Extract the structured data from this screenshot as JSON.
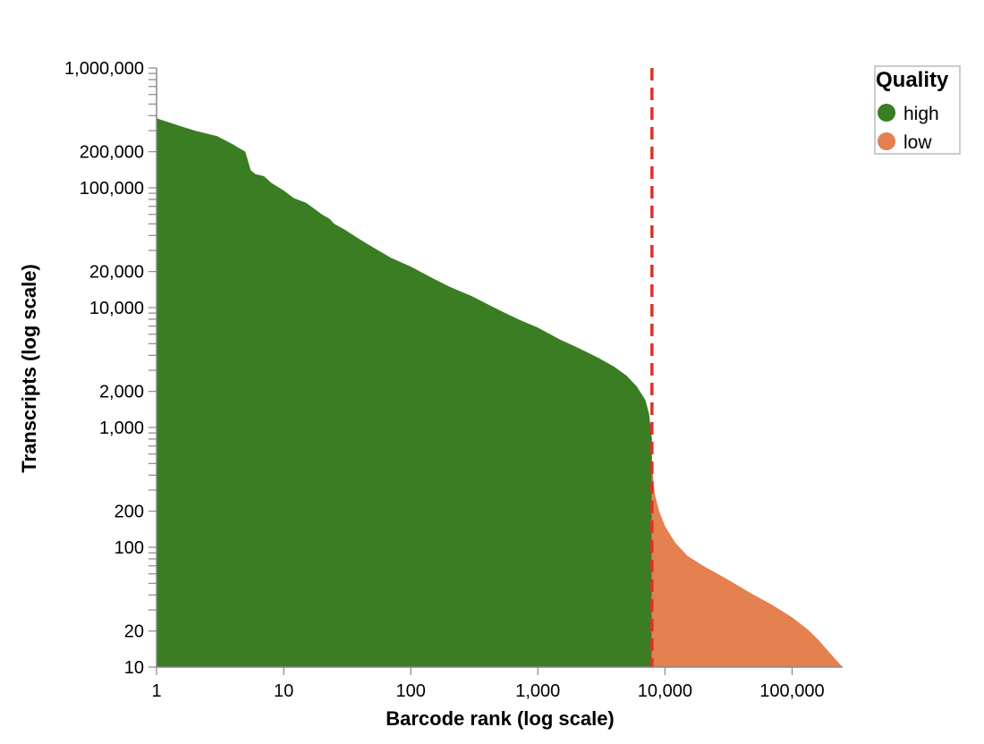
{
  "chart_data": {
    "type": "area",
    "title": "",
    "xlabel": "Barcode rank (log scale)",
    "ylabel": "Transcripts (log scale)",
    "x_scale": "log",
    "y_scale": "log",
    "xlim": [
      1,
      250000
    ],
    "ylim": [
      10,
      1000000
    ],
    "x_ticks": [
      {
        "value": 1,
        "label": "1"
      },
      {
        "value": 10,
        "label": "10"
      },
      {
        "value": 100,
        "label": "100"
      },
      {
        "value": 1000,
        "label": "1,000"
      },
      {
        "value": 10000,
        "label": "10,000"
      },
      {
        "value": 100000,
        "label": "100,000"
      }
    ],
    "y_ticks": [
      {
        "value": 10,
        "label": "10"
      },
      {
        "value": 20,
        "label": "20"
      },
      {
        "value": 100,
        "label": "100"
      },
      {
        "value": 200,
        "label": "200"
      },
      {
        "value": 1000,
        "label": "1,000"
      },
      {
        "value": 2000,
        "label": "2,000"
      },
      {
        "value": 10000,
        "label": "10,000"
      },
      {
        "value": 20000,
        "label": "20,000"
      },
      {
        "value": 100000,
        "label": "100,000"
      },
      {
        "value": 200000,
        "label": "200,000"
      },
      {
        "value": 1000000,
        "label": "1,000,000"
      }
    ],
    "grid": false,
    "legend": {
      "title": "Quality",
      "placement": "top-right"
    },
    "series": [
      {
        "name": "high",
        "color": "#3a7d22",
        "x": [
          1,
          1.5,
          2,
          3,
          4,
          5,
          5.5,
          6,
          7,
          8,
          10,
          12,
          15,
          20,
          23,
          25,
          30,
          40,
          50,
          70,
          100,
          150,
          200,
          300,
          500,
          700,
          1000,
          1500,
          2000,
          3000,
          4000,
          5000,
          6000,
          7000,
          7500,
          7900
        ],
        "y": [
          380000,
          330000,
          300000,
          270000,
          230000,
          200000,
          140000,
          130000,
          125000,
          110000,
          95000,
          82000,
          75000,
          60000,
          55000,
          50000,
          45000,
          37000,
          32000,
          26000,
          22000,
          17500,
          15000,
          12500,
          9500,
          8000,
          6800,
          5400,
          4700,
          3800,
          3200,
          2700,
          2200,
          1700,
          1300,
          800
        ]
      },
      {
        "name": "low",
        "color": "#e5804f",
        "x": [
          7900,
          8300,
          9000,
          10000,
          12000,
          15000,
          20000,
          30000,
          50000,
          70000,
          100000,
          130000,
          160000,
          200000,
          230000,
          250000
        ],
        "y": [
          500,
          280,
          200,
          150,
          110,
          85,
          70,
          55,
          40,
          33,
          26,
          21,
          17,
          13,
          11,
          10
        ]
      }
    ],
    "threshold": {
      "x": 7900,
      "color": "#e0302a",
      "style": "dashed"
    }
  }
}
